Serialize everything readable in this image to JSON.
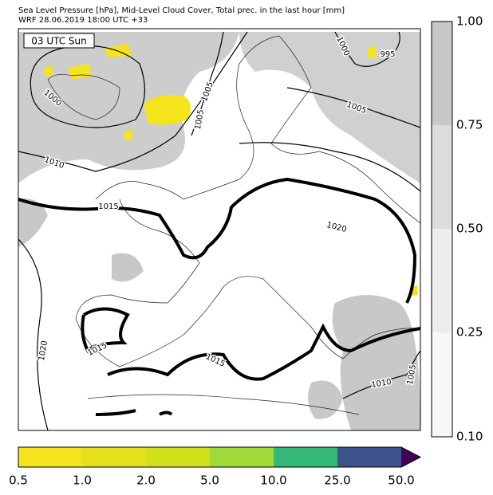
{
  "header": {
    "line1": "Sea Level Pressure [hPa], Mid-Level Cloud Cover, Total prec. in the last hour [mm]",
    "line2": "WRF 28.06.2019 18:00 UTC +33"
  },
  "map": {
    "time_label": "03 UTC Sun",
    "isobar_labels": [
      "1000",
      "1000",
      "1005",
      "1005",
      "1005",
      "995",
      "1010",
      "1015",
      "1020",
      "1015",
      "1015",
      "1020",
      "1010",
      "1005"
    ]
  },
  "cloud_colorbar": {
    "labels": [
      "1.00",
      "0.75",
      "0.50",
      "0.25",
      "0.10"
    ]
  },
  "precip_colorbar": {
    "labels": [
      "0.5",
      "1.0",
      "2.0",
      "5.0",
      "10.0",
      "25.0",
      "50.0"
    ]
  }
}
